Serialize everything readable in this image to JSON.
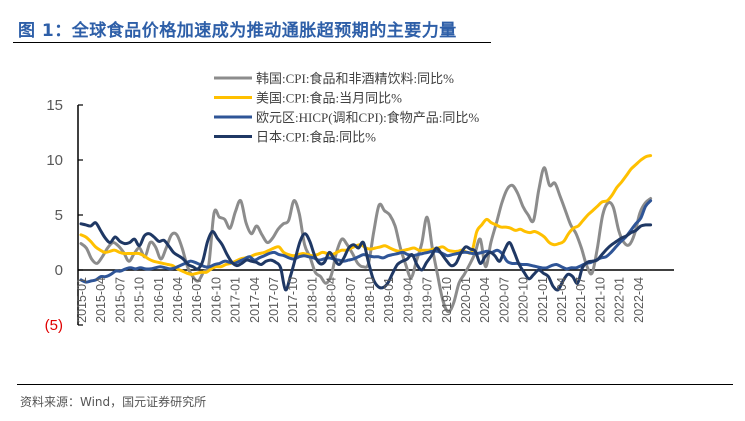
{
  "figure": {
    "title": "图 1：全球食品价格加速成为推动通胀超预期的主要力量",
    "source": "资料来源：Wind，国元证券研究所"
  },
  "chart_data": {
    "type": "line",
    "title": "图 1：全球食品价格加速成为推动通胀超预期的主要力量",
    "xlabel": "",
    "ylabel": "",
    "ylim": [
      -5,
      15
    ],
    "yticks": [
      15,
      10,
      5,
      0,
      -5
    ],
    "ytick_labels": [
      "15",
      "10",
      "5",
      "0",
      "(5)"
    ],
    "grid": false,
    "legend_position": "top-center",
    "x_start": "2015-01",
    "x_end": "2022-06",
    "x_tick_labels": [
      "2015-01",
      "2015-04",
      "2015-07",
      "2015-10",
      "2016-01",
      "2016-04",
      "2016-07",
      "2016-10",
      "2017-01",
      "2017-04",
      "2017-07",
      "2017-10",
      "2018-01",
      "2018-04",
      "2018-07",
      "2018-10",
      "2019-01",
      "2019-04",
      "2019-07",
      "2019-10",
      "2020-01",
      "2020-04",
      "2020-07",
      "2020-10",
      "2021-01",
      "2021-04",
      "2021-07",
      "2021-10",
      "2022-01",
      "2022-04"
    ],
    "series": [
      {
        "name": "韩国:CPI:食品和非酒精饮料:同比%",
        "color": "#8c8c8c",
        "values": [
          2.4,
          2.0,
          1.0,
          0.6,
          1.2,
          2.0,
          2.5,
          2.2,
          1.6,
          0.8,
          1.5,
          2.0,
          1.2,
          2.5,
          2.1,
          1.0,
          2.0,
          3.2,
          3.2,
          2.0,
          0.3,
          -0.6,
          -1.0,
          -0.2,
          0.5,
          5.2,
          4.8,
          4.6,
          3.8,
          5.3,
          6.3,
          4.3,
          3.3,
          4.0,
          3.2,
          2.5,
          2.9,
          3.7,
          4.2,
          4.5,
          6.3,
          5.1,
          2.3,
          1.2,
          -0.2,
          -0.6,
          -1.2,
          -0.5,
          1.6,
          2.8,
          2.3,
          1.5,
          0.6,
          0.3,
          0.6,
          3.5,
          5.9,
          5.4,
          5.0,
          4.0,
          2.0,
          0.5,
          -0.7,
          0.8,
          2.4,
          4.8,
          2.0,
          -0.5,
          -2.8,
          -3.8,
          -3.0,
          -1.2,
          -0.4,
          0.5,
          1.5,
          2.8,
          0.3,
          2.5,
          4.2,
          6.0,
          7.3,
          7.7,
          7.0,
          5.8,
          5.0,
          4.5,
          7.3,
          9.3,
          7.7,
          7.9,
          6.7,
          5.4,
          4.1,
          3.3,
          2.0,
          0.4,
          -0.3,
          2.0,
          5.0,
          6.1,
          5.7,
          3.6,
          2.5,
          2.3,
          3.3,
          5.2,
          6.1,
          6.5
        ]
      },
      {
        "name": "美国:CPI:食品:当月同比%",
        "color": "#ffc000",
        "values": [
          3.2,
          3.0,
          2.6,
          2.1,
          1.8,
          1.6,
          1.7,
          1.8,
          1.6,
          1.5,
          1.5,
          1.5,
          1.5,
          1.3,
          1.0,
          0.8,
          0.7,
          0.6,
          0.5,
          0.4,
          0.1,
          -0.1,
          -0.3,
          -0.4,
          -0.3,
          -0.2,
          -0.2,
          0.1,
          0.3,
          0.3,
          0.5,
          0.6,
          0.8,
          1.0,
          1.1,
          1.2,
          1.4,
          1.5,
          1.6,
          1.8,
          2.0,
          2.1,
          1.6,
          1.4,
          1.3,
          1.4,
          1.5,
          1.4,
          1.3,
          1.4,
          1.6,
          1.5,
          1.4,
          1.6,
          1.8,
          1.8,
          2.0,
          2.2,
          2.3,
          2.0,
          1.9,
          2.0,
          2.1,
          2.2,
          2.0,
          1.8,
          1.7,
          1.8,
          1.9,
          2.0,
          1.8,
          1.8,
          1.8,
          1.9,
          2.0,
          2.1,
          1.8,
          1.7,
          1.7,
          1.8,
          1.6,
          1.7,
          3.5,
          4.1,
          4.6,
          4.3,
          4.1,
          3.9,
          3.9,
          3.8,
          3.6,
          3.7,
          3.5,
          3.4,
          3.5,
          3.3,
          3.0,
          2.5,
          2.3,
          2.4,
          2.6,
          3.3,
          3.8,
          4.0,
          4.5,
          5.0,
          5.4,
          5.8,
          6.2,
          6.3,
          6.8,
          7.5,
          8.0,
          8.6,
          9.2,
          9.6,
          10.0,
          10.3,
          10.4
        ]
      },
      {
        "name": "欧元区:HICP(调和CPI):食物产品:同比%",
        "color": "#2f5597",
        "values": [
          -0.9,
          -1.1,
          -1.0,
          -0.9,
          -0.6,
          -0.6,
          -0.4,
          -0.1,
          -0.1,
          0.1,
          0.2,
          0.1,
          0.2,
          0.1,
          0.1,
          0.2,
          0.3,
          0.2,
          0.1,
          0.2,
          0.4,
          0.6,
          0.8,
          0.7,
          0.5,
          0.3,
          0.3,
          0.5,
          0.6,
          0.8,
          0.7,
          0.6,
          0.8,
          1.0,
          1.2,
          0.9,
          1.1,
          1.3,
          1.5,
          1.6,
          1.4,
          1.3,
          1.1,
          1.0,
          1.2,
          1.3,
          1.2,
          1.1,
          0.9,
          1.0,
          1.1,
          1.0,
          0.9,
          0.8,
          0.9,
          1.0,
          1.2,
          1.4,
          1.3,
          1.2,
          1.2,
          1.1,
          1.3,
          1.4,
          1.5,
          1.6,
          1.4,
          1.3,
          1.4,
          1.5,
          1.6,
          1.7,
          1.7,
          1.5,
          1.3,
          1.4,
          1.5,
          1.6,
          1.6,
          1.5,
          1.5,
          1.6,
          1.7,
          1.6,
          1.8,
          1.5,
          0.8,
          0.6,
          0.6,
          0.5,
          0.5,
          0.4,
          0.3,
          0.2,
          0.2,
          0.4,
          0.5,
          0.3,
          0.1,
          0.2,
          0.2,
          0.4,
          0.6,
          0.7,
          0.9,
          1.1,
          1.2,
          1.6,
          2.1,
          2.6,
          3.0,
          3.6,
          4.2,
          4.7,
          5.8,
          6.3
        ]
      },
      {
        "name": "日本:CPI:食品:同比%",
        "color": "#1f3864",
        "values": [
          4.2,
          4.1,
          4.0,
          4.3,
          3.6,
          2.9,
          2.5,
          3.0,
          2.6,
          2.4,
          2.5,
          2.8,
          2.2,
          3.1,
          3.3,
          3.0,
          2.6,
          2.7,
          2.2,
          1.6,
          1.3,
          1.0,
          0.5,
          0.3,
          0.1,
          0.8,
          2.6,
          3.5,
          2.9,
          2.3,
          1.4,
          0.7,
          0.4,
          0.6,
          0.9,
          0.8,
          0.7,
          0.5,
          0.8,
          0.9,
          0.7,
          0.2,
          -1.8,
          -0.6,
          1.0,
          2.6,
          3.3,
          2.6,
          1.3,
          0.6,
          0.7,
          1.6,
          1.0,
          0.5,
          1.1,
          2.0,
          2.3,
          2.0,
          2.5,
          0.8,
          -0.8,
          -1.5,
          -1.6,
          -1.2,
          -0.3,
          0.5,
          0.8,
          1.0,
          1.4,
          0.5,
          0.0,
          0.7,
          1.3,
          2.0,
          1.5,
          0.9,
          0.4,
          0.6,
          1.5,
          2.1,
          1.9,
          1.7,
          0.6,
          1.2,
          1.6,
          1.3,
          0.8,
          1.8,
          2.5,
          1.6,
          0.5,
          -0.2,
          -0.8,
          -0.4,
          0.0,
          -0.3,
          -0.6,
          -1.5,
          -1.8,
          -1.0,
          -0.4,
          -0.6,
          -1.2,
          0.2,
          0.7,
          0.8,
          0.9,
          1.4,
          1.9,
          2.3,
          2.6,
          2.9,
          3.1,
          3.4,
          3.6,
          4.0,
          4.1,
          4.1
        ]
      }
    ]
  }
}
